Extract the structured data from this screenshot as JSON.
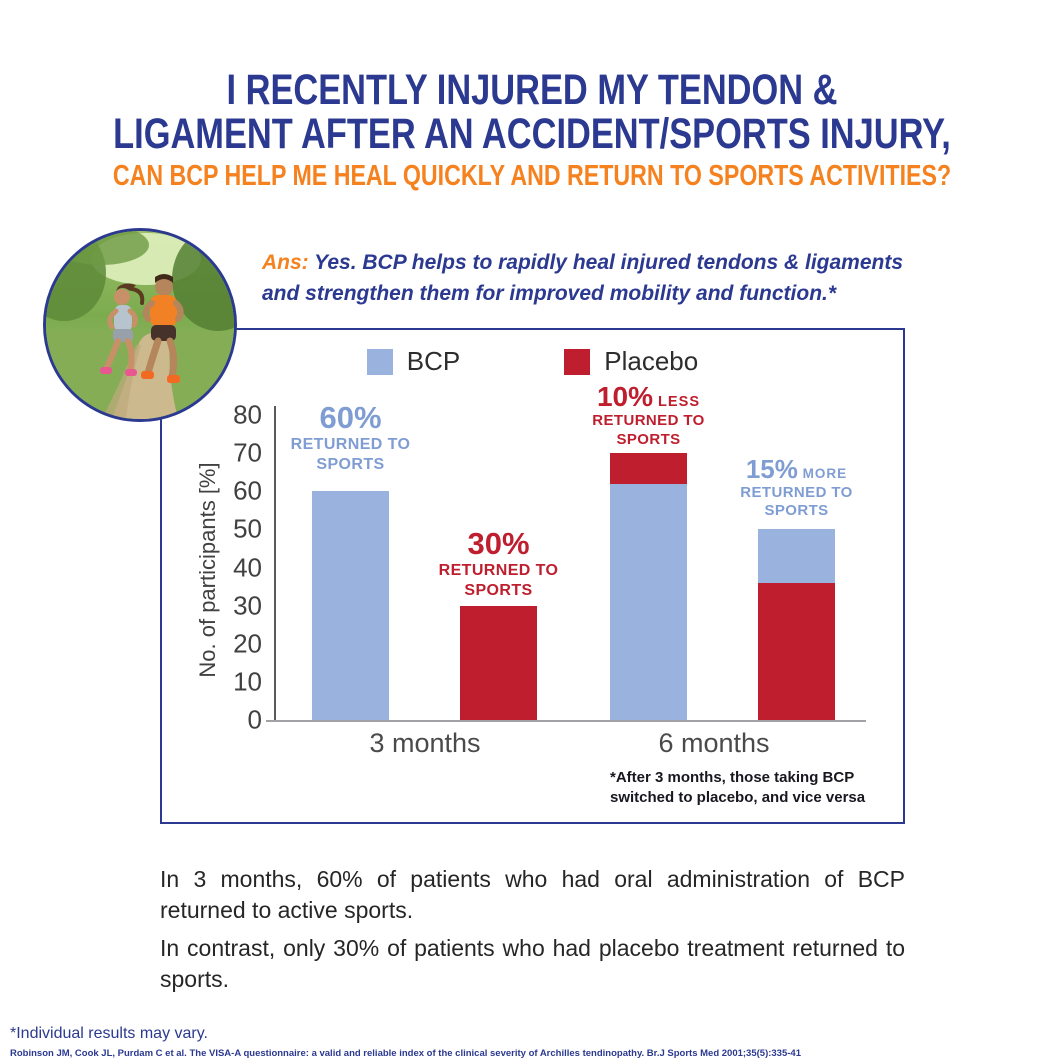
{
  "title": {
    "line1": "I RECENTLY INJURED MY TENDON &",
    "line2": "LIGAMENT AFTER AN ACCIDENT/SPORTS INJURY,",
    "line3": "CAN BCP HELP ME HEAL QUICKLY AND RETURN TO SPORTS ACTIVITIES?"
  },
  "answer": {
    "prefix": "Ans:",
    "line1": "Yes. BCP helps to rapidly heal injured tendons & ligaments",
    "line2": "and strengthen them for improved mobility and function.*"
  },
  "photo": {
    "icon": "jogging-couple-photo"
  },
  "chart_data": {
    "type": "bar",
    "ylabel": "No. of participants [%]",
    "ylim": [
      0,
      80
    ],
    "yticks": [
      0,
      10,
      20,
      30,
      40,
      50,
      60,
      70,
      80
    ],
    "legend_position": "top",
    "grid": false,
    "legend": [
      {
        "name": "BCP",
        "color": "#9AB2DE"
      },
      {
        "name": "Placebo",
        "color": "#BE1E2D"
      }
    ],
    "groups": [
      {
        "label": "3 months",
        "bars": [
          {
            "segments": [
              {
                "series": "BCP",
                "value": 60
              }
            ],
            "annotation": {
              "big": "60%",
              "small": "",
              "lines": [
                "RETURNED TO",
                "SPORTS"
              ],
              "color": "blue"
            }
          },
          {
            "segments": [
              {
                "series": "Placebo",
                "value": 30
              }
            ],
            "annotation": {
              "big": "30%",
              "small": "",
              "lines": [
                "RETURNED TO",
                "SPORTS"
              ],
              "color": "red"
            }
          }
        ]
      },
      {
        "label": "6 months",
        "bars": [
          {
            "segments": [
              {
                "series": "BCP",
                "value": 62
              },
              {
                "series": "Placebo",
                "value": 8
              }
            ],
            "annotation": {
              "big": "10%",
              "small": "LESS",
              "lines": [
                "RETURNED TO",
                "SPORTS"
              ],
              "color": "red"
            }
          },
          {
            "segments": [
              {
                "series": "Placebo",
                "value": 36
              },
              {
                "series": "BCP",
                "value": 14
              }
            ],
            "annotation": {
              "big": "15%",
              "small": "MORE",
              "lines": [
                "RETURNED TO",
                "SPORTS"
              ],
              "color": "blue"
            }
          }
        ]
      }
    ],
    "footnote_lines": [
      "*After 3 months, those taking BCP",
      "switched to placebo, and vice versa"
    ]
  },
  "body": {
    "paragraph1": "In 3 months, 60% of patients who had oral administration of BCP returned to active sports.",
    "paragraph2": "In contrast, only 30% of patients who had placebo treatment returned to sports."
  },
  "footer": {
    "disclaimer": "*Individual results may vary.",
    "citation": "Robinson JM, Cook JL, Purdam C et al. The VISA-A questionnaire: a valid and reliable index of the clinical severity of Archilles tendinopathy. Br.J Sports Med 2001;35(5):335-41"
  },
  "colors": {
    "navy": "#2B3990",
    "orange": "#F5821F",
    "bcp_blue": "#9AB2DE",
    "placebo_red": "#BE1E2D",
    "annotation_blue": "#7F9DD3"
  }
}
